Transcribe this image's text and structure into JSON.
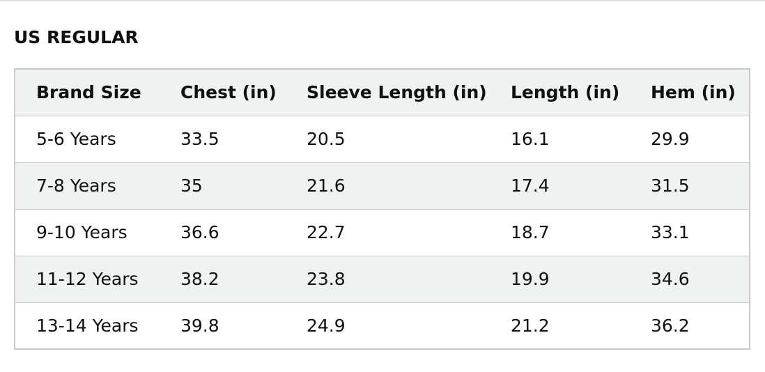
{
  "title": "US REGULAR",
  "table": {
    "header": [
      "Brand Size",
      "Chest (in)",
      "Sleeve Length (in)",
      "Length (in)",
      "Hem (in)"
    ],
    "rows": [
      [
        "5-6 Years",
        33.5,
        20.5,
        16.1,
        29.9
      ],
      [
        "7-8 Years",
        35,
        21.6,
        17.4,
        31.5
      ],
      [
        "9-10 Years",
        36.6,
        22.7,
        18.7,
        33.1
      ],
      [
        "11-12 Years",
        38.2,
        23.8,
        19.9,
        34.6
      ],
      [
        "13-14 Years",
        39.8,
        24.9,
        21.2,
        36.2
      ]
    ]
  }
}
